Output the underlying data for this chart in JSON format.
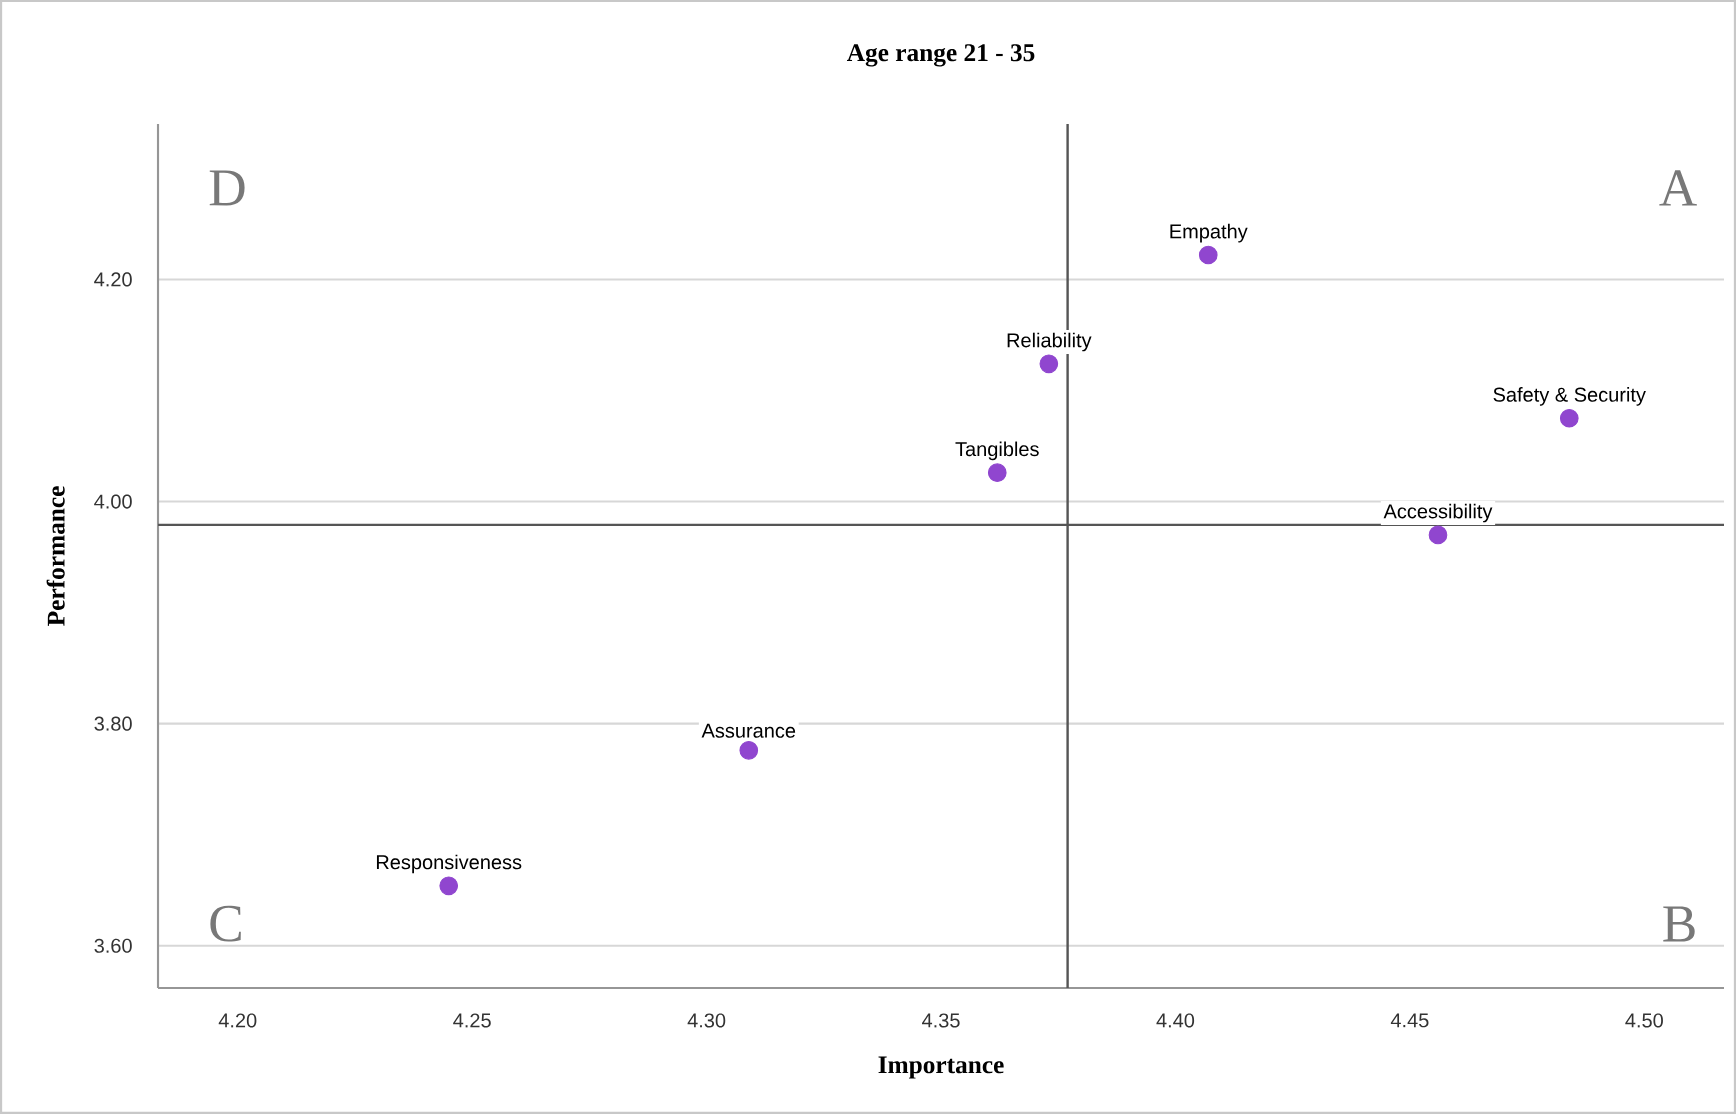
{
  "chart_data": {
    "type": "scatter",
    "title": "Age range 21 - 35",
    "xlabel": "Importance",
    "ylabel": "Performance",
    "xlim": [
      4.183,
      4.517
    ],
    "ylim": [
      3.562,
      4.34
    ],
    "xticks": [
      {
        "value": 4.2,
        "label": "4.20"
      },
      {
        "value": 4.25,
        "label": "4.25"
      },
      {
        "value": 4.3,
        "label": "4.30"
      },
      {
        "value": 4.35,
        "label": "4.35"
      },
      {
        "value": 4.4,
        "label": "4.40"
      },
      {
        "value": 4.45,
        "label": "4.45"
      },
      {
        "value": 4.5,
        "label": "4.50"
      }
    ],
    "yticks": [
      {
        "value": 3.6,
        "label": "3.60"
      },
      {
        "value": 3.8,
        "label": "3.80"
      },
      {
        "value": 4.0,
        "label": "4.00"
      },
      {
        "value": 4.2,
        "label": "4.20"
      }
    ],
    "grid": "y",
    "legend": false,
    "marker": "circle",
    "series": [
      {
        "name": "Empathy",
        "color": "#9046cf",
        "x": [
          4.407
        ],
        "values": [
          4.222
        ]
      },
      {
        "name": "Reliability",
        "color": "#9046cf",
        "x": [
          4.373
        ],
        "values": [
          4.124
        ]
      },
      {
        "name": "Tangibles",
        "color": "#9046cf",
        "x": [
          4.362
        ],
        "values": [
          4.026
        ]
      },
      {
        "name": "Safety & Security",
        "color": "#9046cf",
        "x": [
          4.484
        ],
        "values": [
          4.075
        ]
      },
      {
        "name": "Accessibility",
        "color": "#9046cf",
        "x": [
          4.456
        ],
        "values": [
          3.97
        ]
      },
      {
        "name": "Assurance",
        "color": "#9046cf",
        "x": [
          4.309
        ],
        "values": [
          3.776
        ]
      },
      {
        "name": "Responsiveness",
        "color": "#9046cf",
        "x": [
          4.245
        ],
        "values": [
          3.654
        ]
      }
    ],
    "ref_lines": [
      {
        "axis": "x",
        "value": 4.377,
        "color": "#555555"
      },
      {
        "axis": "y",
        "value": 3.979,
        "color": "#555555"
      }
    ],
    "annotations": [
      "D",
      "A",
      "C",
      "B"
    ]
  }
}
